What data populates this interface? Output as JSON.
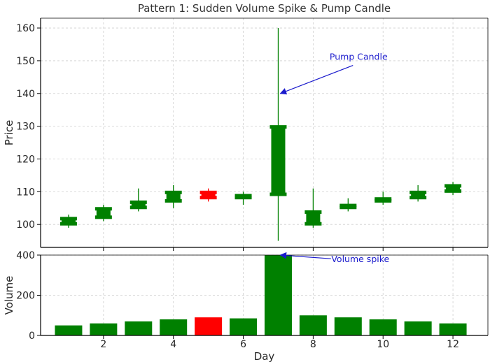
{
  "chart_data": {
    "type": "candlestick",
    "title": "Pattern 1: Sudden Volume Spike & Pump Candle",
    "xlabel": "Day",
    "grid": true,
    "colors": {
      "up": "#008000",
      "down": "#ff0000",
      "annotation": "#1a1acc"
    },
    "days": [
      1,
      2,
      3,
      4,
      5,
      6,
      7,
      8,
      9,
      10,
      11,
      12
    ],
    "x_ticks": [
      "2",
      "4",
      "6",
      "8",
      "10",
      "12"
    ],
    "price": {
      "ylabel": "Price",
      "ylim": [
        93,
        163
      ],
      "y_ticks": [
        "100",
        "110",
        "120",
        "130",
        "140",
        "150",
        "160"
      ],
      "candles": [
        {
          "day": 1,
          "open": 100,
          "close": 102,
          "low": 99,
          "high": 103,
          "dir": "up"
        },
        {
          "day": 2,
          "open": 102,
          "close": 105,
          "low": 101,
          "high": 106,
          "dir": "up"
        },
        {
          "day": 3,
          "open": 105,
          "close": 107,
          "low": 104,
          "high": 111,
          "dir": "up"
        },
        {
          "day": 4,
          "open": 107,
          "close": 110,
          "low": 105,
          "high": 112,
          "dir": "up"
        },
        {
          "day": 5,
          "open": 110,
          "close": 108,
          "low": 107,
          "high": 111,
          "dir": "down"
        },
        {
          "day": 6,
          "open": 108,
          "close": 109,
          "low": 106,
          "high": 110,
          "dir": "up"
        },
        {
          "day": 7,
          "open": 109,
          "close": 130,
          "low": 95,
          "high": 160,
          "dir": "up"
        },
        {
          "day": 8,
          "open": 100,
          "close": 104,
          "low": 99,
          "high": 111,
          "dir": "up"
        },
        {
          "day": 9,
          "open": 105,
          "close": 106,
          "low": 104,
          "high": 108,
          "dir": "up"
        },
        {
          "day": 10,
          "open": 107,
          "close": 108,
          "low": 106,
          "high": 110,
          "dir": "up"
        },
        {
          "day": 11,
          "open": 108,
          "close": 110,
          "low": 107,
          "high": 112,
          "dir": "up"
        },
        {
          "day": 12,
          "open": 110,
          "close": 112,
          "low": 109,
          "high": 113,
          "dir": "up"
        }
      ],
      "annotation": {
        "text": "Pump Candle",
        "target_day": 7,
        "target_value": 140
      }
    },
    "volume": {
      "ylabel": "Volume",
      "ylim": [
        0,
        400
      ],
      "y_ticks": [
        "0",
        "200",
        "400"
      ],
      "values": [
        50,
        60,
        70,
        80,
        90,
        85,
        400,
        100,
        90,
        80,
        70,
        60
      ],
      "dirs": [
        "up",
        "up",
        "up",
        "up",
        "down",
        "up",
        "up",
        "up",
        "up",
        "up",
        "up",
        "up"
      ],
      "annotation": {
        "text": "Volume spike",
        "target_day": 7,
        "target_value": 400
      }
    }
  }
}
